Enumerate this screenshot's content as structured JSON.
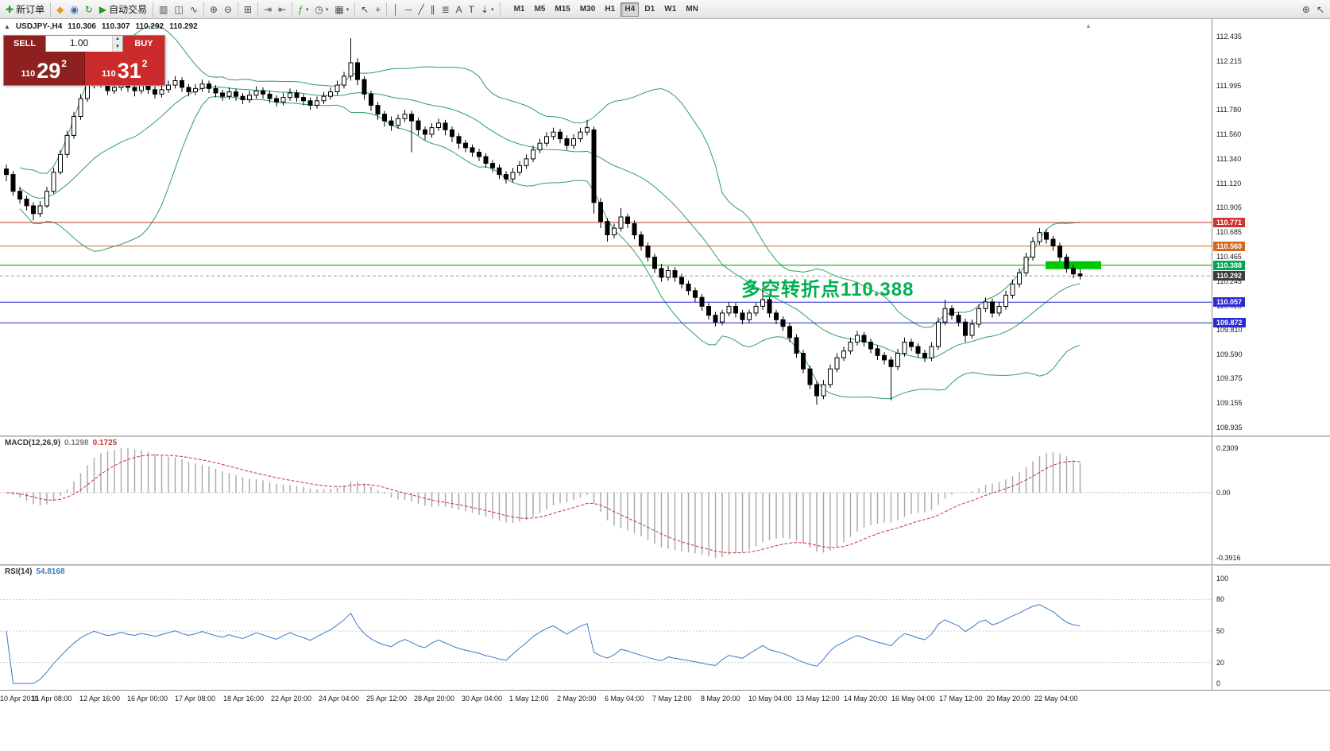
{
  "toolbar": {
    "items": [
      {
        "name": "new-order-button",
        "glyph": "✚",
        "color": "#1f9d1f",
        "label": "新订单"
      },
      {
        "type": "sep"
      },
      {
        "name": "favorites-button",
        "glyph": "◆",
        "color": "#dfa315"
      },
      {
        "name": "market-watch-button",
        "glyph": "◉",
        "color": "#3a6ea5"
      },
      {
        "name": "refresh-button",
        "glyph": "↻",
        "color": "#2a8a2a"
      },
      {
        "name": "autotrading-button",
        "glyph": "▶",
        "color": "#1f9d1f",
        "label": "自动交易"
      },
      {
        "type": "sep"
      },
      {
        "name": "bar-chart-button",
        "glyph": "▥"
      },
      {
        "name": "candlestick-chart-button",
        "glyph": "◫"
      },
      {
        "name": "line-chart-button",
        "glyph": "∿"
      },
      {
        "type": "sep"
      },
      {
        "name": "zoom-in-button",
        "glyph": "⊕"
      },
      {
        "name": "zoom-out-button",
        "glyph": "⊖"
      },
      {
        "type": "sep"
      },
      {
        "name": "tile-windows-button",
        "glyph": "⊞"
      },
      {
        "type": "sep"
      },
      {
        "name": "auto-scroll-button",
        "glyph": "⇥"
      },
      {
        "name": "chart-shift-button",
        "glyph": "⇤"
      },
      {
        "type": "sep"
      },
      {
        "name": "indicators-button",
        "glyph": "ƒ",
        "color": "#1f9d1f",
        "caret": true
      },
      {
        "name": "periods-button",
        "glyph": "◷",
        "caret": true
      },
      {
        "name": "templates-button",
        "glyph": "▦",
        "caret": true
      },
      {
        "type": "sep"
      },
      {
        "name": "cursor-button",
        "glyph": "↖"
      },
      {
        "name": "crosshair-button",
        "glyph": "+"
      },
      {
        "type": "sep"
      },
      {
        "name": "vertical-line-button",
        "glyph": "│"
      },
      {
        "name": "horizontal-line-button",
        "glyph": "─"
      },
      {
        "name": "trendline-button",
        "glyph": "╱"
      },
      {
        "name": "channel-button",
        "glyph": "∥"
      },
      {
        "name": "fibonacci-button",
        "glyph": "≣"
      },
      {
        "name": "text-button",
        "glyph": "A"
      },
      {
        "name": "text-label-button",
        "glyph": "T"
      },
      {
        "name": "arrows-button",
        "glyph": "⇣",
        "caret": true
      },
      {
        "type": "sep"
      }
    ],
    "timeframes": [
      "M1",
      "M5",
      "M15",
      "M30",
      "H1",
      "H4",
      "D1",
      "W1",
      "MN"
    ],
    "active_timeframe": "H4",
    "right_items": [
      {
        "name": "search-zoom-button",
        "glyph": "⊕"
      },
      {
        "name": "cursor-help-button",
        "glyph": "↖"
      }
    ]
  },
  "ui": {
    "symbol_info": {
      "toggle_glyph": "▲",
      "symbol": "USDJPY-,H4"
    },
    "scroll_marker_glyph": "▲",
    "one_click": {
      "sell_label": "SELL",
      "buy_label": "BUY",
      "volume": "1.00",
      "vol_up_glyph": "▲",
      "vol_down_glyph": "▼",
      "sell_price": {
        "prefix": "110",
        "big": "29",
        "pip": "2"
      },
      "buy_price": {
        "prefix": "110",
        "big": "31",
        "pip": "2"
      }
    },
    "macd_label": {
      "name": "MACD(12,26,9)",
      "value1": "0.1298",
      "value2": "0.1725"
    },
    "rsi_label": {
      "name": "RSI(14)",
      "value": "54.8168"
    }
  },
  "chart_data": {
    "type": "candlestick",
    "symbol": "USDJPY-",
    "timeframe": "H4",
    "ohlc_display": [
      "110.306",
      "110.307",
      "110.292",
      "110.292"
    ],
    "ylim": [
      108.935,
      112.435
    ],
    "price_ticks": [
      "112.435",
      "112.215",
      "111.995",
      "111.780",
      "111.560",
      "111.340",
      "111.120",
      "110.905",
      "110.685",
      "110.465",
      "110.245",
      "110.025",
      "109.810",
      "109.590",
      "109.375",
      "109.155",
      "108.935"
    ],
    "time_labels": [
      "10 Apr 2019",
      "11 Apr 08:00",
      "12 Apr 16:00",
      "16 Apr 00:00",
      "17 Apr 08:00",
      "18 Apr 16:00",
      "22 Apr 20:00",
      "24 Apr 04:00",
      "25 Apr 12:00",
      "28 Apr 20:00",
      "30 Apr 04:00",
      "1 May 12:00",
      "2 May 20:00",
      "6 May 04:00",
      "7 May 12:00",
      "8 May 20:00",
      "10 May 04:00",
      "13 May 12:00",
      "14 May 20:00",
      "16 May 04:00",
      "17 May 12:00",
      "20 May 20:00",
      "22 May 04:00"
    ],
    "indicators": {
      "bollinger": {
        "period": 20,
        "deviation": 2
      },
      "macd": {
        "fast": 12,
        "slow": 26,
        "signal": 9
      },
      "rsi": {
        "period": 14
      }
    },
    "macd_axis": [
      "0.2309",
      "0.00",
      "-0.3916"
    ],
    "rsi_levels": [
      100,
      80,
      50,
      20,
      0
    ],
    "hlines": [
      {
        "price": 110.771,
        "label": "110.771",
        "color": "#b03a2e",
        "style": "solid",
        "tag_bg": "#cf352b"
      },
      {
        "price": 110.56,
        "label": "110.560",
        "color": "#d2691e",
        "style": "solid",
        "tag_bg": "#d2691e"
      },
      {
        "price": 110.388,
        "label": "110.388",
        "color": "#009000",
        "style": "solid",
        "tag_bg": "#00a651"
      },
      {
        "price": 110.292,
        "label": "110.292",
        "color": "#9a9a9a",
        "style": "dash",
        "tag_bg": "#3c3c3c"
      },
      {
        "price": 110.057,
        "label": "110.057",
        "color": "#2222cc",
        "style": "solid",
        "tag_bg": "#2b2bd6"
      },
      {
        "price": 109.872,
        "label": "109.872",
        "color": "#2222cc",
        "style": "solid",
        "tag_bg": "#2b2bd6"
      }
    ],
    "highlight": {
      "price": 110.388,
      "color": "#00c800"
    },
    "annotation": {
      "text": "多空转折点110.388",
      "color": "#00b050"
    },
    "colors": {
      "bull": "#ffffff",
      "bear": "#000000",
      "wick": "#000000",
      "bands": "#2f9e63",
      "macd_hist": "#a6a6a6",
      "macd_signal": "#d03030",
      "rsi_line": "#3c78c8"
    },
    "candles": [
      [
        111.25,
        111.29,
        111.14,
        111.2
      ],
      [
        111.2,
        111.23,
        111.01,
        111.05
      ],
      [
        111.05,
        111.09,
        110.94,
        110.98
      ],
      [
        110.98,
        111.01,
        110.88,
        110.92
      ],
      [
        110.92,
        110.95,
        110.79,
        110.85
      ],
      [
        110.85,
        110.96,
        110.82,
        110.92
      ],
      [
        110.92,
        111.09,
        110.9,
        111.05
      ],
      [
        111.05,
        111.26,
        111.03,
        111.22
      ],
      [
        111.22,
        111.42,
        111.2,
        111.38
      ],
      [
        111.38,
        111.59,
        111.35,
        111.55
      ],
      [
        111.55,
        111.76,
        111.52,
        111.72
      ],
      [
        111.72,
        111.92,
        111.69,
        111.88
      ],
      [
        111.88,
        112.05,
        111.85,
        112.0
      ],
      [
        112.0,
        112.18,
        111.97,
        112.1
      ],
      [
        112.1,
        112.13,
        111.98,
        112.02
      ],
      [
        112.02,
        112.06,
        111.91,
        111.95
      ],
      [
        111.95,
        112.02,
        111.92,
        111.98
      ],
      [
        111.98,
        112.09,
        111.95,
        112.05
      ],
      [
        112.05,
        112.08,
        111.94,
        111.98
      ],
      [
        111.98,
        112.01,
        111.9,
        111.95
      ],
      [
        111.95,
        112.04,
        111.92,
        112.0
      ],
      [
        112.0,
        112.03,
        111.92,
        111.96
      ],
      [
        111.96,
        111.99,
        111.88,
        111.92
      ],
      [
        111.92,
        112.0,
        111.89,
        111.96
      ],
      [
        111.96,
        112.04,
        111.93,
        112.0
      ],
      [
        112.0,
        112.08,
        111.97,
        112.04
      ],
      [
        112.04,
        112.07,
        111.94,
        111.98
      ],
      [
        111.98,
        112.01,
        111.9,
        111.94
      ],
      [
        111.94,
        112.01,
        111.91,
        111.97
      ],
      [
        111.97,
        112.05,
        111.94,
        112.01
      ],
      [
        112.01,
        112.04,
        111.93,
        111.97
      ],
      [
        111.97,
        112.0,
        111.89,
        111.93
      ],
      [
        111.93,
        111.96,
        111.86,
        111.9
      ],
      [
        111.9,
        111.98,
        111.87,
        111.94
      ],
      [
        111.94,
        111.97,
        111.86,
        111.9
      ],
      [
        111.9,
        111.93,
        111.83,
        111.87
      ],
      [
        111.87,
        111.95,
        111.84,
        111.91
      ],
      [
        111.91,
        111.99,
        111.88,
        111.95
      ],
      [
        111.95,
        111.98,
        111.88,
        111.92
      ],
      [
        111.92,
        111.95,
        111.84,
        111.88
      ],
      [
        111.88,
        111.91,
        111.81,
        111.85
      ],
      [
        111.85,
        111.93,
        111.82,
        111.89
      ],
      [
        111.89,
        111.97,
        111.86,
        111.93
      ],
      [
        111.93,
        111.96,
        111.85,
        111.89
      ],
      [
        111.89,
        111.92,
        111.82,
        111.86
      ],
      [
        111.86,
        111.89,
        111.78,
        111.82
      ],
      [
        111.82,
        111.9,
        111.79,
        111.86
      ],
      [
        111.86,
        111.94,
        111.83,
        111.9
      ],
      [
        111.9,
        111.98,
        111.87,
        111.94
      ],
      [
        111.94,
        112.04,
        111.91,
        112.0
      ],
      [
        112.0,
        112.12,
        111.97,
        112.08
      ],
      [
        112.08,
        112.42,
        112.04,
        112.2
      ],
      [
        112.2,
        112.24,
        112.0,
        112.05
      ],
      [
        112.05,
        112.08,
        111.87,
        111.92
      ],
      [
        111.92,
        111.95,
        111.77,
        111.82
      ],
      [
        111.82,
        111.85,
        111.69,
        111.74
      ],
      [
        111.74,
        111.77,
        111.63,
        111.68
      ],
      [
        111.68,
        111.72,
        111.59,
        111.64
      ],
      [
        111.64,
        111.74,
        111.61,
        111.7
      ],
      [
        111.7,
        111.78,
        111.67,
        111.74
      ],
      [
        111.74,
        111.77,
        111.4,
        111.68
      ],
      [
        111.68,
        111.71,
        111.55,
        111.6
      ],
      [
        111.6,
        111.63,
        111.51,
        111.56
      ],
      [
        111.56,
        111.66,
        111.53,
        111.62
      ],
      [
        111.62,
        111.7,
        111.59,
        111.66
      ],
      [
        111.66,
        111.69,
        111.55,
        111.6
      ],
      [
        111.6,
        111.63,
        111.49,
        111.54
      ],
      [
        111.54,
        111.57,
        111.43,
        111.48
      ],
      [
        111.48,
        111.51,
        111.4,
        111.44
      ],
      [
        111.44,
        111.47,
        111.36,
        111.4
      ],
      [
        111.4,
        111.43,
        111.32,
        111.36
      ],
      [
        111.36,
        111.39,
        111.26,
        111.3
      ],
      [
        111.3,
        111.33,
        111.22,
        111.26
      ],
      [
        111.26,
        111.29,
        111.16,
        111.2
      ],
      [
        111.2,
        111.23,
        111.12,
        111.16
      ],
      [
        111.16,
        111.26,
        111.13,
        111.22
      ],
      [
        111.22,
        111.32,
        111.19,
        111.28
      ],
      [
        111.28,
        111.38,
        111.25,
        111.34
      ],
      [
        111.34,
        111.46,
        111.31,
        111.42
      ],
      [
        111.42,
        111.52,
        111.39,
        111.48
      ],
      [
        111.48,
        111.58,
        111.45,
        111.54
      ],
      [
        111.54,
        111.62,
        111.51,
        111.58
      ],
      [
        111.58,
        111.61,
        111.48,
        111.52
      ],
      [
        111.52,
        111.55,
        111.42,
        111.46
      ],
      [
        111.46,
        111.56,
        111.43,
        111.52
      ],
      [
        111.52,
        111.62,
        111.49,
        111.58
      ],
      [
        111.58,
        111.69,
        111.55,
        111.62
      ],
      [
        111.6,
        111.63,
        110.85,
        110.95
      ],
      [
        110.95,
        110.99,
        110.72,
        110.78
      ],
      [
        110.78,
        110.81,
        110.6,
        110.66
      ],
      [
        110.66,
        110.76,
        110.63,
        110.72
      ],
      [
        110.72,
        110.9,
        110.69,
        110.82
      ],
      [
        110.82,
        110.85,
        110.72,
        110.76
      ],
      [
        110.76,
        110.79,
        110.62,
        110.66
      ],
      [
        110.66,
        110.69,
        110.52,
        110.56
      ],
      [
        110.56,
        110.59,
        110.42,
        110.46
      ],
      [
        110.46,
        110.49,
        110.32,
        110.36
      ],
      [
        110.36,
        110.4,
        110.24,
        110.28
      ],
      [
        110.28,
        110.38,
        110.25,
        110.34
      ],
      [
        110.34,
        110.37,
        110.24,
        110.28
      ],
      [
        110.28,
        110.31,
        110.18,
        110.22
      ],
      [
        110.22,
        110.25,
        110.12,
        110.16
      ],
      [
        110.16,
        110.19,
        110.06,
        110.1
      ],
      [
        110.1,
        110.13,
        109.98,
        110.02
      ],
      [
        110.02,
        110.05,
        109.9,
        109.94
      ],
      [
        109.94,
        109.97,
        109.84,
        109.88
      ],
      [
        109.88,
        109.99,
        109.85,
        109.96
      ],
      [
        109.96,
        110.06,
        109.93,
        110.02
      ],
      [
        110.02,
        110.05,
        109.92,
        109.96
      ],
      [
        109.96,
        109.99,
        109.86,
        109.9
      ],
      [
        109.9,
        109.99,
        109.87,
        109.96
      ],
      [
        109.96,
        110.05,
        109.93,
        110.02
      ],
      [
        110.02,
        110.18,
        109.99,
        110.08
      ],
      [
        110.08,
        110.11,
        109.92,
        109.96
      ],
      [
        109.96,
        109.99,
        109.86,
        109.9
      ],
      [
        109.9,
        109.93,
        109.8,
        109.84
      ],
      [
        109.84,
        109.87,
        109.7,
        109.74
      ],
      [
        109.74,
        109.77,
        109.56,
        109.6
      ],
      [
        109.6,
        109.63,
        109.42,
        109.46
      ],
      [
        109.46,
        109.49,
        109.28,
        109.32
      ],
      [
        109.32,
        109.35,
        109.14,
        109.22
      ],
      [
        109.22,
        109.36,
        109.19,
        109.32
      ],
      [
        109.32,
        109.5,
        109.29,
        109.46
      ],
      [
        109.46,
        109.6,
        109.43,
        109.56
      ],
      [
        109.56,
        109.66,
        109.53,
        109.62
      ],
      [
        109.62,
        109.74,
        109.59,
        109.7
      ],
      [
        109.7,
        109.8,
        109.67,
        109.76
      ],
      [
        109.76,
        109.79,
        109.66,
        109.7
      ],
      [
        109.7,
        109.73,
        109.6,
        109.64
      ],
      [
        109.64,
        109.67,
        109.54,
        109.58
      ],
      [
        109.58,
        109.61,
        109.5,
        109.54
      ],
      [
        109.54,
        109.57,
        109.18,
        109.48
      ],
      [
        109.48,
        109.64,
        109.45,
        109.6
      ],
      [
        109.6,
        109.74,
        109.57,
        109.7
      ],
      [
        109.7,
        109.73,
        109.62,
        109.66
      ],
      [
        109.66,
        109.69,
        109.56,
        109.6
      ],
      [
        109.6,
        109.63,
        109.52,
        109.56
      ],
      [
        109.56,
        109.7,
        109.53,
        109.66
      ],
      [
        109.66,
        109.92,
        109.63,
        109.88
      ],
      [
        109.88,
        110.08,
        109.85,
        110.0
      ],
      [
        110.0,
        110.03,
        109.9,
        109.94
      ],
      [
        109.94,
        109.97,
        109.84,
        109.88
      ],
      [
        109.88,
        109.91,
        109.7,
        109.76
      ],
      [
        109.76,
        109.9,
        109.73,
        109.86
      ],
      [
        109.86,
        110.04,
        109.83,
        110.0
      ],
      [
        110.0,
        110.1,
        109.97,
        110.06
      ],
      [
        110.06,
        110.09,
        109.92,
        109.96
      ],
      [
        109.96,
        110.06,
        109.93,
        110.02
      ],
      [
        110.02,
        110.16,
        109.99,
        110.12
      ],
      [
        110.12,
        110.26,
        110.09,
        110.22
      ],
      [
        110.22,
        110.36,
        110.19,
        110.32
      ],
      [
        110.32,
        110.5,
        110.29,
        110.46
      ],
      [
        110.46,
        110.64,
        110.43,
        110.6
      ],
      [
        110.6,
        110.72,
        110.57,
        110.68
      ],
      [
        110.68,
        110.71,
        110.58,
        110.62
      ],
      [
        110.62,
        110.65,
        110.52,
        110.56
      ],
      [
        110.56,
        110.59,
        110.42,
        110.46
      ],
      [
        110.46,
        110.49,
        110.32,
        110.36
      ],
      [
        110.36,
        110.39,
        110.27,
        110.31
      ],
      [
        110.31,
        110.35,
        110.26,
        110.292
      ]
    ]
  }
}
